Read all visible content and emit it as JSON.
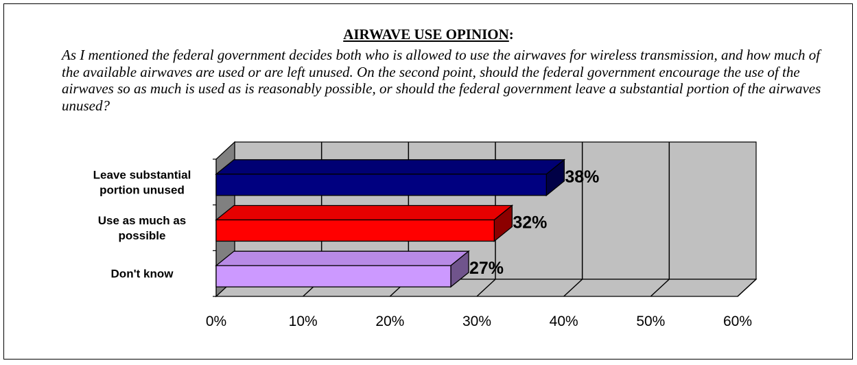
{
  "chart_data": {
    "type": "bar",
    "orientation": "horizontal",
    "style": "3d",
    "title": "AIRWAVE USE OPINION",
    "title_suffix": ":",
    "question": "As I mentioned the federal government decides both who is allowed to use the airwaves for wireless transmission, and how much of the available airwaves are used or are left unused.  On the second point, should the federal government encourage the use of the airwaves so as much is used as is reasonably possible, or should the federal government leave a substantial portion of the airwaves unused?",
    "categories": [
      {
        "lines": [
          "Leave substantial",
          "portion unused"
        ],
        "value": 38,
        "label": "38%",
        "color": "#000080"
      },
      {
        "lines": [
          "Use as much as",
          "possible"
        ],
        "value": 32,
        "label": "32%",
        "color": "#ff0000"
      },
      {
        "lines": [
          "Don't know"
        ],
        "value": 27,
        "label": "27%",
        "color": "#cc99ff"
      }
    ],
    "xlim": [
      0,
      60
    ],
    "xticks": [
      "0%",
      "10%",
      "20%",
      "30%",
      "40%",
      "50%",
      "60%"
    ],
    "grid": true,
    "legend": "none",
    "colors": {
      "wall": "#c0c0c0",
      "floor": "#c0c0c0",
      "side": "#808080"
    }
  }
}
